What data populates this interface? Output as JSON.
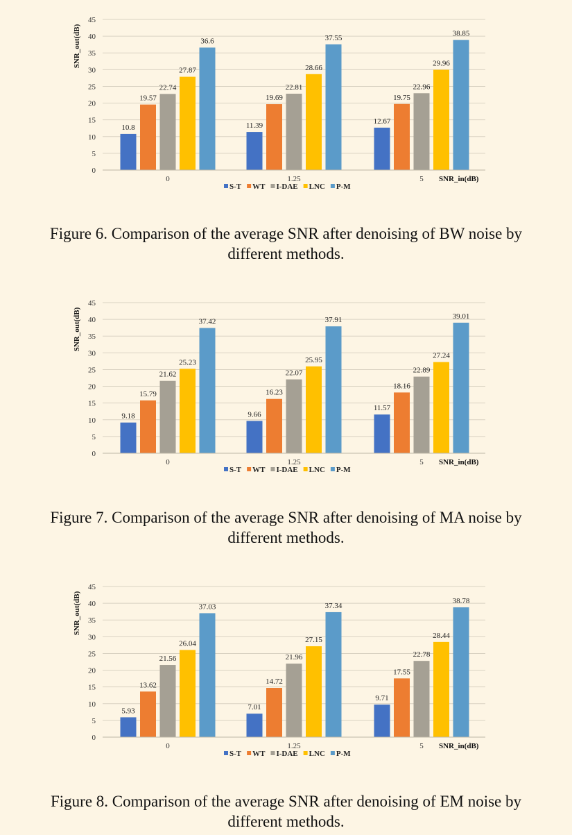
{
  "chart_data": [
    {
      "type": "bar",
      "title": "",
      "xlabel": "SNR_in(dB)",
      "ylabel": "SNR_out(dB)",
      "ylim": [
        0,
        45
      ],
      "yticks": [
        "0",
        "5",
        "10",
        "15",
        "20",
        "25",
        "30",
        "35",
        "40",
        "45"
      ],
      "grid": true,
      "legend_position": "bottom",
      "categories": [
        "0",
        "1.25",
        "5"
      ],
      "series": [
        {
          "name": "S-T",
          "color": "#4472c4",
          "values": [
            10.8,
            11.39,
            12.67
          ],
          "labels": [
            "10.8",
            "11.39",
            "12.67"
          ]
        },
        {
          "name": "WT",
          "color": "#ed7d31",
          "values": [
            19.57,
            19.69,
            19.75
          ],
          "labels": [
            "19.57",
            "19.69",
            "19.75"
          ]
        },
        {
          "name": "I-DAE",
          "color": "#a5a094",
          "values": [
            22.74,
            22.81,
            22.96
          ],
          "labels": [
            "22.74",
            "22.81",
            "22.96"
          ]
        },
        {
          "name": "LNC",
          "color": "#ffc000",
          "values": [
            27.87,
            28.66,
            29.96
          ],
          "labels": [
            "27.87",
            "28.66",
            "29.96"
          ]
        },
        {
          "name": "P-M",
          "color": "#5b9bc9",
          "values": [
            36.6,
            37.55,
            38.85
          ],
          "labels": [
            "36.6",
            "37.55",
            "38.85"
          ]
        }
      ]
    },
    {
      "type": "bar",
      "title": "",
      "xlabel": "SNR_in(dB)",
      "ylabel": "SNR_out(dB)",
      "ylim": [
        0,
        45
      ],
      "yticks": [
        "0",
        "5",
        "10",
        "15",
        "20",
        "25",
        "30",
        "35",
        "40",
        "45"
      ],
      "grid": true,
      "legend_position": "bottom",
      "categories": [
        "0",
        "1.25",
        "5"
      ],
      "series": [
        {
          "name": "S-T",
          "color": "#4472c4",
          "values": [
            9.18,
            9.66,
            11.57
          ],
          "labels": [
            "9.18",
            "9.66",
            "11.57"
          ]
        },
        {
          "name": "WT",
          "color": "#ed7d31",
          "values": [
            15.79,
            16.23,
            18.16
          ],
          "labels": [
            "15.79",
            "16.23",
            "18.16"
          ]
        },
        {
          "name": "I-DAE",
          "color": "#a5a094",
          "values": [
            21.62,
            22.07,
            22.89
          ],
          "labels": [
            "21.62",
            "22.07",
            "22.89"
          ]
        },
        {
          "name": "LNC",
          "color": "#ffc000",
          "values": [
            25.23,
            25.95,
            27.24
          ],
          "labels": [
            "25.23",
            "25.95",
            "27.24"
          ]
        },
        {
          "name": "P-M",
          "color": "#5b9bc9",
          "values": [
            37.42,
            37.91,
            39.01
          ],
          "labels": [
            "37.42",
            "37.91",
            "39.01"
          ]
        }
      ]
    },
    {
      "type": "bar",
      "title": "",
      "xlabel": "SNR_in(dB)",
      "ylabel": "SNR_out(dB)",
      "ylim": [
        0,
        45
      ],
      "yticks": [
        "0",
        "5",
        "10",
        "15",
        "20",
        "25",
        "30",
        "35",
        "40",
        "45"
      ],
      "grid": true,
      "legend_position": "bottom",
      "categories": [
        "0",
        "1.25",
        "5"
      ],
      "series": [
        {
          "name": "S-T",
          "color": "#4472c4",
          "values": [
            5.93,
            7.01,
            9.71
          ],
          "labels": [
            "5.93",
            "7.01",
            "9.71"
          ]
        },
        {
          "name": "WT",
          "color": "#ed7d31",
          "values": [
            13.62,
            14.72,
            17.55
          ],
          "labels": [
            "13.62",
            "14.72",
            "17.55"
          ]
        },
        {
          "name": "I-DAE",
          "color": "#a5a094",
          "values": [
            21.56,
            21.96,
            22.78
          ],
          "labels": [
            "21.56",
            "21.96",
            "22.78"
          ]
        },
        {
          "name": "LNC",
          "color": "#ffc000",
          "values": [
            26.04,
            27.15,
            28.44
          ],
          "labels": [
            "26.04",
            "27.15",
            "28.44"
          ]
        },
        {
          "name": "P-M",
          "color": "#5b9bc9",
          "values": [
            37.03,
            37.34,
            38.78
          ],
          "labels": [
            "37.03",
            "37.34",
            "38.78"
          ]
        }
      ]
    }
  ],
  "captions": [
    {
      "line1": "Figure 6. Comparison of the average SNR after denoising of BW noise by",
      "line2": "different methods."
    },
    {
      "line1": "Figure 7. Comparison of the average SNR after denoising of MA noise by",
      "line2": "different methods."
    },
    {
      "line1": "Figure 8. Comparison of the average SNR after denoising of EM noise by",
      "line2": "different methods."
    }
  ]
}
